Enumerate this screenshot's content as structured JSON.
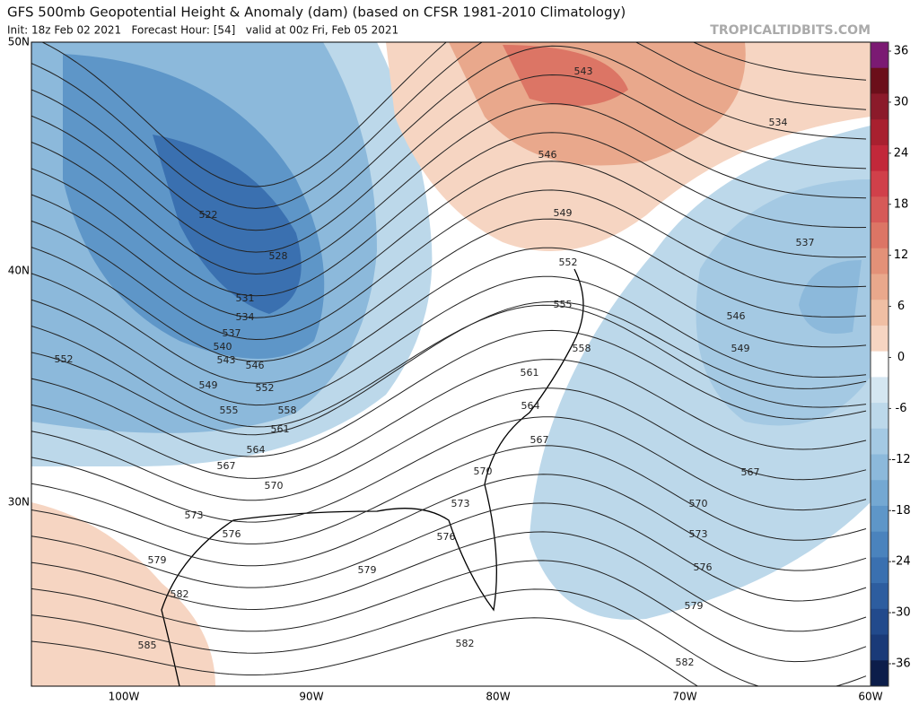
{
  "header": {
    "title": "GFS 500mb Geopotential Height & Anomaly (dam) (based on CFSR 1981-2010 Climatology)",
    "run_info": "Init: 18z Feb 02 2021   Forecast Hour: [54]   valid at 00z Fri, Feb 05 2021",
    "site": "TROPICALTIDBITS.COM"
  },
  "map": {
    "lat_labels": [
      "50N",
      "40N",
      "30N"
    ],
    "lon_labels": [
      "100W",
      "90W",
      "80W",
      "70W",
      "60W"
    ],
    "contour_labels": [
      543,
      534,
      546,
      549,
      552,
      555,
      558,
      561,
      564,
      567,
      570,
      573,
      576,
      579,
      582,
      582,
      579,
      576,
      573,
      570,
      567,
      549,
      546,
      537,
      522,
      528,
      531,
      534,
      537,
      540,
      543,
      546,
      549,
      552,
      555,
      558,
      561,
      564,
      567,
      570,
      573,
      576,
      579,
      582,
      585,
      552
    ]
  },
  "colorbar": {
    "ticks": [
      36,
      30,
      24,
      18,
      12,
      6,
      0,
      -6,
      -12,
      -18,
      -24,
      -30,
      -36
    ],
    "colors": [
      "#7b1a73",
      "#6b0f1a",
      "#8b1a2a",
      "#a8202f",
      "#c2283a",
      "#d0404a",
      "#d65a58",
      "#dc7565",
      "#e39178",
      "#e9a88c",
      "#f0bfa4",
      "#f6d5c2",
      "#ffffff",
      "#d4e6f1",
      "#bcd8ea",
      "#a4c9e3",
      "#8cb9db",
      "#74a8d2",
      "#5e96c8",
      "#4a83bd",
      "#3a70b0",
      "#2d5d9f",
      "#224a8c",
      "#1a3a78",
      "#0c1d4a"
    ]
  }
}
